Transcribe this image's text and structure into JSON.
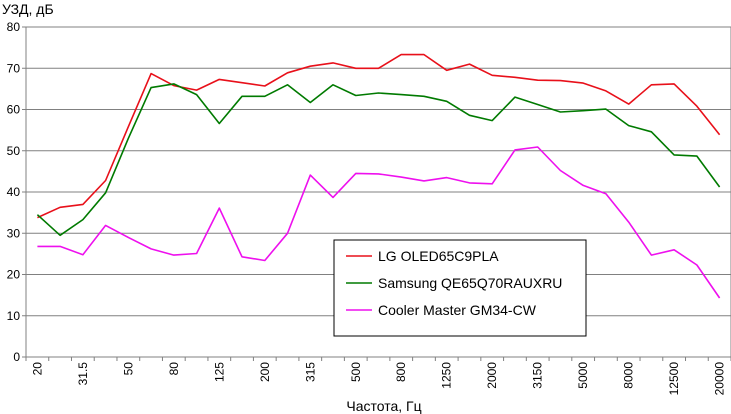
{
  "chart_data": {
    "type": "line",
    "ylabel": "УЗД, дБ",
    "xlabel": "Частота, Гц",
    "ylim": [
      0,
      80
    ],
    "yticks": [
      "0",
      "10",
      "20",
      "30",
      "40",
      "50",
      "60",
      "70",
      "80"
    ],
    "grid": "horizontal",
    "legend_position": "bottom-center",
    "x": [
      "20",
      "25",
      "31.5",
      "40",
      "50",
      "63",
      "80",
      "100",
      "125",
      "160",
      "200",
      "250",
      "315",
      "400",
      "500",
      "630",
      "800",
      "1000",
      "1250",
      "1600",
      "2000",
      "2500",
      "3150",
      "4000",
      "5000",
      "6300",
      "8000",
      "10000",
      "12500",
      "16000",
      "20000"
    ],
    "xticks_shown": [
      "20",
      "31.5",
      "50",
      "80",
      "125",
      "200",
      "315",
      "500",
      "800",
      "1250",
      "2000",
      "3150",
      "5000",
      "8000",
      "12500",
      "20000"
    ],
    "series": [
      {
        "name": "LG OLED65C9PLA",
        "color": "#e8101a",
        "values": [
          33.8,
          36.3,
          37.0,
          42.8,
          55.8,
          68.7,
          65.8,
          64.7,
          67.3,
          66.5,
          65.7,
          68.9,
          70.5,
          71.3,
          70.0,
          70.0,
          73.3,
          73.3,
          69.5,
          71.0,
          68.3,
          67.8,
          67.1,
          67.0,
          66.4,
          64.5,
          61.3,
          66.0,
          66.2,
          60.8,
          53.9
        ]
      },
      {
        "name": "Samsung QE65Q70RAUXRU",
        "color": "#007a00",
        "values": [
          34.5,
          29.5,
          33.3,
          39.8,
          53.0,
          65.3,
          66.2,
          63.6,
          56.6,
          63.2,
          63.2,
          66.0,
          61.7,
          66.0,
          63.4,
          64.0,
          63.6,
          63.2,
          62.0,
          58.6,
          57.3,
          63.0,
          61.2,
          59.4,
          59.7,
          60.1,
          56.1,
          54.6,
          49.0,
          48.7,
          41.2
        ]
      },
      {
        "name": "Cooler Master GM34-CW",
        "color": "#ee10ee",
        "values": [
          26.8,
          26.8,
          24.8,
          31.9,
          29.0,
          26.2,
          24.7,
          25.1,
          36.1,
          24.3,
          23.4,
          30.0,
          44.1,
          38.7,
          44.5,
          44.4,
          43.6,
          42.7,
          43.5,
          42.2,
          42.0,
          50.2,
          50.9,
          45.2,
          41.6,
          39.6,
          32.7,
          24.7,
          26.0,
          22.3,
          14.3
        ]
      }
    ]
  }
}
